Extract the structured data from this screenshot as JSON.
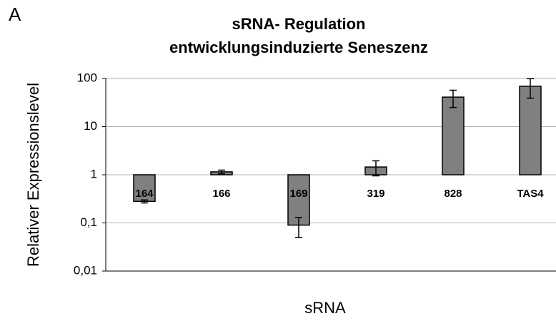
{
  "panel_label": "A",
  "chart_data": {
    "type": "bar",
    "title": [
      "sRNA- Regulation",
      "entwicklungsinduzierte Seneszenz"
    ],
    "xlabel": "sRNA",
    "ylabel": "Relativer Expressionslevel",
    "categories": [
      "164",
      "166",
      "169",
      "319",
      "828",
      "TAS4"
    ],
    "values": [
      0.28,
      1.15,
      0.09,
      1.45,
      41,
      69
    ],
    "errors": [
      0.02,
      0.1,
      0.04,
      0.5,
      16,
      30
    ],
    "color": "#808080",
    "log_y": true,
    "base": 1,
    "ylim": [
      0.01,
      100
    ],
    "yticks": [
      {
        "value": 0.01,
        "label": "0,01"
      },
      {
        "value": 0.1,
        "label": "0,1"
      },
      1,
      10,
      100
    ],
    "grid": true
  }
}
